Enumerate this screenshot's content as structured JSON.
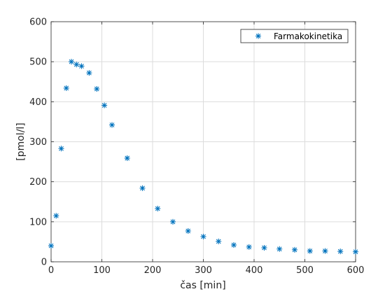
{
  "chart_data": {
    "type": "scatter",
    "title": "",
    "xlabel": "čas [min]",
    "ylabel": "[pmol/l]",
    "xlim": [
      0,
      600
    ],
    "ylim": [
      0,
      600
    ],
    "xticks": [
      "0",
      "100",
      "200",
      "300",
      "400",
      "500",
      "600"
    ],
    "yticks": [
      "0",
      "100",
      "200",
      "300",
      "400",
      "500",
      "600"
    ],
    "grid": true,
    "legend_position": "top-right",
    "marker": "asterisk",
    "series": [
      {
        "name": "Farmakokinetika",
        "color": "#0072BD",
        "points": [
          [
            0,
            40
          ],
          [
            10,
            115
          ],
          [
            20,
            283
          ],
          [
            30,
            434
          ],
          [
            40,
            500
          ],
          [
            50,
            493
          ],
          [
            60,
            489
          ],
          [
            75,
            472
          ],
          [
            90,
            432
          ],
          [
            105,
            391
          ],
          [
            120,
            342
          ],
          [
            150,
            259
          ],
          [
            180,
            184
          ],
          [
            210,
            133
          ],
          [
            240,
            100
          ],
          [
            270,
            77
          ],
          [
            300,
            63
          ],
          [
            330,
            51
          ],
          [
            360,
            42
          ],
          [
            390,
            37
          ],
          [
            420,
            35
          ],
          [
            450,
            32
          ],
          [
            480,
            30
          ],
          [
            510,
            27
          ],
          [
            540,
            27
          ],
          [
            570,
            26
          ],
          [
            600,
            25
          ]
        ]
      }
    ]
  }
}
